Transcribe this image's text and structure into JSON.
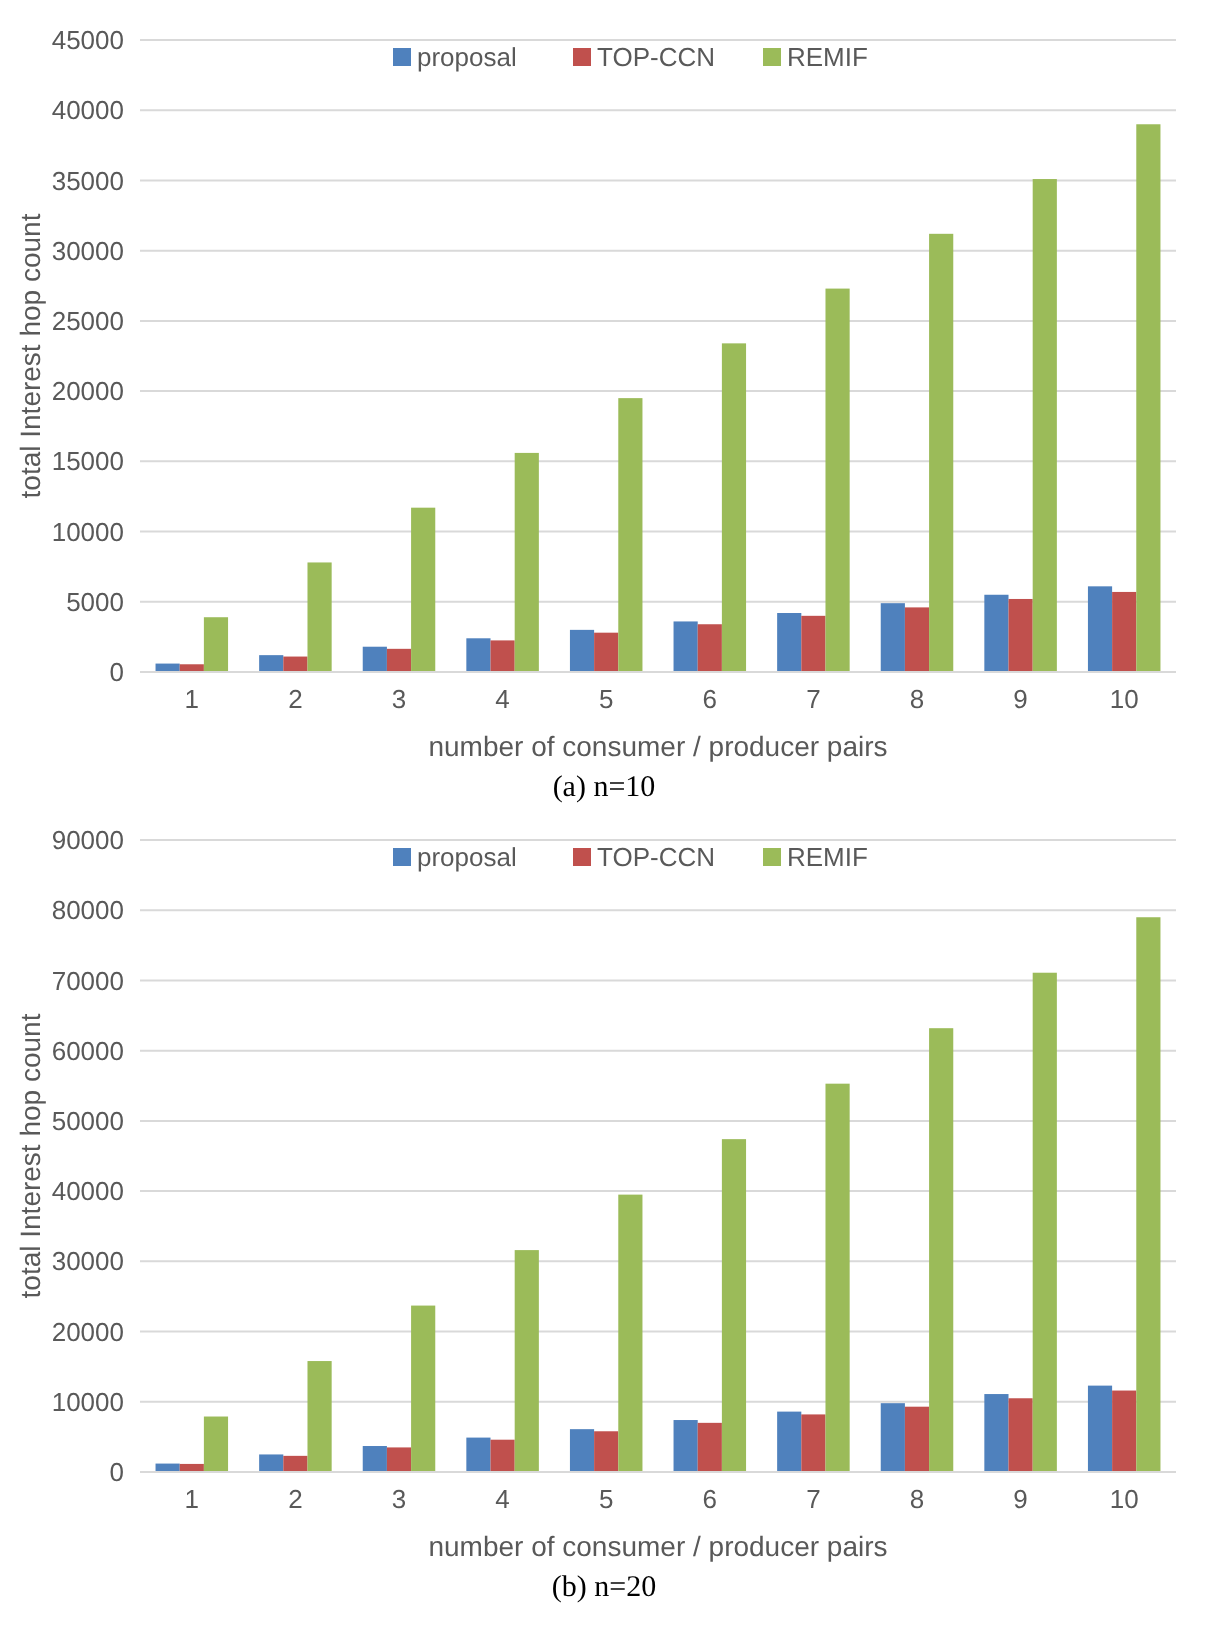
{
  "chart_data": [
    {
      "type": "bar",
      "categories": [
        "1",
        "2",
        "3",
        "4",
        "5",
        "6",
        "7",
        "8",
        "9",
        "10"
      ],
      "xlabel": "number of consumer / producer pairs",
      "ylabel": "total Interest hop count",
      "ylim": [
        0,
        45000
      ],
      "yticks": [
        0,
        5000,
        10000,
        15000,
        20000,
        25000,
        30000,
        35000,
        40000,
        45000
      ],
      "grid": "y",
      "legend": "top",
      "annotations": [
        "(a) n=10"
      ],
      "series": [
        {
          "name": "proposal",
          "color": "#4f81bd",
          "values": [
            600,
            1200,
            1800,
            2400,
            3000,
            3600,
            4200,
            4900,
            5500,
            6100
          ]
        },
        {
          "name": "TOP-CCN",
          "color": "#c0504d",
          "values": [
            550,
            1100,
            1650,
            2250,
            2800,
            3400,
            4000,
            4600,
            5200,
            5700
          ]
        },
        {
          "name": "REMIF",
          "color": "#9bbb59",
          "values": [
            3900,
            7800,
            11700,
            15600,
            19500,
            23400,
            27300,
            31200,
            35100,
            39000
          ]
        }
      ]
    },
    {
      "type": "bar",
      "categories": [
        "1",
        "2",
        "3",
        "4",
        "5",
        "6",
        "7",
        "8",
        "9",
        "10"
      ],
      "xlabel": "number of consumer / producer pairs",
      "ylabel": "total Interest hop count",
      "ylim": [
        0,
        90000
      ],
      "yticks": [
        0,
        10000,
        20000,
        30000,
        40000,
        50000,
        60000,
        70000,
        80000,
        90000
      ],
      "grid": "y",
      "legend": "top",
      "annotations": [
        "(b) n=20"
      ],
      "series": [
        {
          "name": "proposal",
          "color": "#4f81bd",
          "values": [
            1200,
            2500,
            3700,
            4900,
            6100,
            7400,
            8600,
            9800,
            11100,
            12300
          ]
        },
        {
          "name": "TOP-CCN",
          "color": "#c0504d",
          "values": [
            1150,
            2300,
            3500,
            4600,
            5800,
            7000,
            8200,
            9300,
            10500,
            11600
          ]
        },
        {
          "name": "REMIF",
          "color": "#9bbb59",
          "values": [
            7900,
            15800,
            23700,
            31600,
            39500,
            47400,
            55300,
            63200,
            71100,
            79000
          ]
        }
      ]
    }
  ]
}
